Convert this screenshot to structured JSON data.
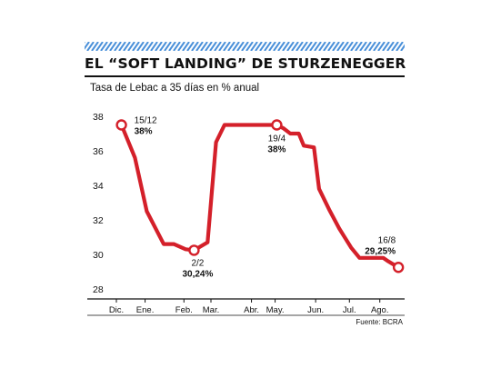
{
  "header": {
    "title": "EL “SOFT LANDING” DE STURZENEGGER",
    "subtitle": "Tasa de Lebac a 35 días en % anual"
  },
  "footer": {
    "source": "Fuente: BCRA"
  },
  "colors": {
    "stripe_blue": "#4a90d9",
    "line_red": "#d4202a",
    "text": "#111111",
    "axis": "#111111"
  },
  "chart_data": {
    "type": "line",
    "title": "EL “SOFT LANDING” DE STURZENEGGER",
    "subtitle": "Tasa de Lebac a 35 días en % anual",
    "xlabel": "",
    "ylabel": "",
    "ylim": [
      28,
      38
    ],
    "xlim": [
      0,
      8.4
    ],
    "yticks": [
      28,
      30,
      32,
      34,
      36,
      38
    ],
    "grid": false,
    "x_categories": [
      {
        "label": "Dic.",
        "pos": 0
      },
      {
        "label": "Ene.",
        "pos": 0.85
      },
      {
        "label": "Feb.",
        "pos": 2.0
      },
      {
        "label": "Mar.",
        "pos": 2.8
      },
      {
        "label": "Abr.",
        "pos": 4.0
      },
      {
        "label": "May.",
        "pos": 4.7
      },
      {
        "label": "Jun.",
        "pos": 5.9
      },
      {
        "label": "Jul.",
        "pos": 6.9
      },
      {
        "label": "Ago.",
        "pos": 7.8
      }
    ],
    "series": [
      {
        "points": [
          [
            0.15,
            37.5
          ],
          [
            0.55,
            35.6
          ],
          [
            0.9,
            32.5
          ],
          [
            1.4,
            30.6
          ],
          [
            1.7,
            30.6
          ],
          [
            2.05,
            30.3
          ],
          [
            2.3,
            30.24
          ],
          [
            2.7,
            30.7
          ],
          [
            2.95,
            36.5
          ],
          [
            3.2,
            37.5
          ],
          [
            3.8,
            37.5
          ],
          [
            4.3,
            37.5
          ],
          [
            4.75,
            37.5
          ],
          [
            4.95,
            37.3
          ],
          [
            5.15,
            37.0
          ],
          [
            5.4,
            37.0
          ],
          [
            5.55,
            36.3
          ],
          [
            5.85,
            36.2
          ],
          [
            6.0,
            33.8
          ],
          [
            6.3,
            32.6
          ],
          [
            6.6,
            31.5
          ],
          [
            6.95,
            30.4
          ],
          [
            7.2,
            29.8
          ],
          [
            7.6,
            29.8
          ],
          [
            7.9,
            29.8
          ],
          [
            8.05,
            29.6
          ],
          [
            8.35,
            29.25
          ]
        ]
      }
    ],
    "annotations": [
      {
        "date": "15/12",
        "value": "38%",
        "x": 0.15,
        "y": 37.5
      },
      {
        "date": "2/2",
        "value": "30,24%",
        "x": 2.3,
        "y": 30.24
      },
      {
        "date": "19/4",
        "value": "38%",
        "x": 4.75,
        "y": 37.5
      },
      {
        "date": "16/8",
        "value": "29,25%",
        "x": 8.35,
        "y": 29.25
      }
    ]
  }
}
